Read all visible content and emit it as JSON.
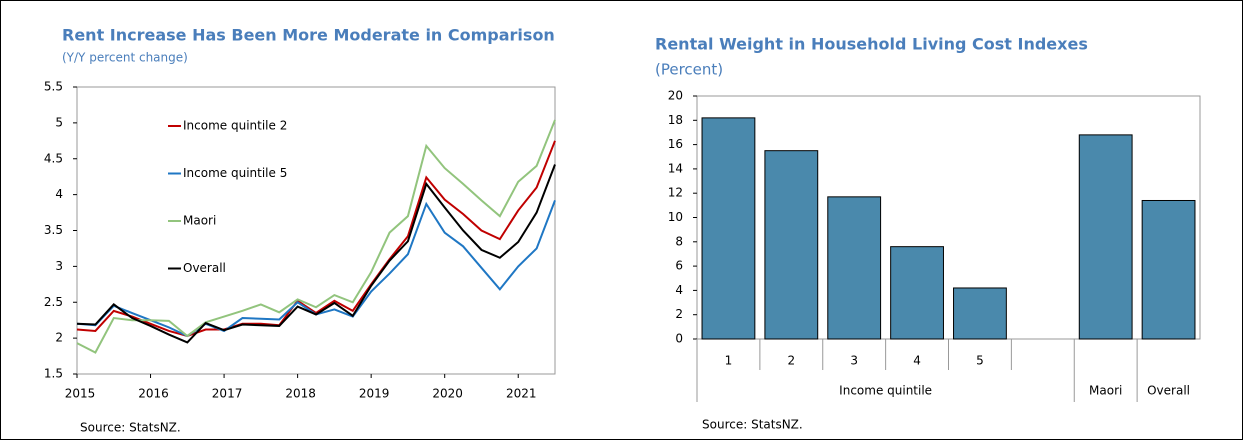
{
  "chart_data": [
    {
      "type": "line",
      "title": "Rent Increase Has Been More Moderate in Comparison",
      "subtitle": "(Y/Y percent change)",
      "source": "Source: StatsNZ.",
      "x": [
        2015,
        2015.25,
        2015.5,
        2015.75,
        2016,
        2016.25,
        2016.5,
        2016.75,
        2017,
        2017.25,
        2017.5,
        2017.75,
        2018,
        2018.25,
        2018.5,
        2018.75,
        2019,
        2019.25,
        2019.5,
        2019.75,
        2020,
        2020.25,
        2020.5,
        2020.75,
        2021,
        2021.25,
        2021.5
      ],
      "xlim": [
        2015,
        2021.5
      ],
      "xticks": [
        2015,
        2016,
        2017,
        2018,
        2019,
        2020,
        2021
      ],
      "ylim": [
        1.5,
        5.5
      ],
      "yticks": [
        1.5,
        2,
        2.5,
        3,
        3.5,
        4,
        4.5,
        5,
        5.5
      ],
      "legend": "upper left",
      "grid": false,
      "series": [
        {
          "name": "Income quintile 2",
          "color": "#c00000",
          "values": [
            2.12,
            2.1,
            2.38,
            2.3,
            2.2,
            2.1,
            2.03,
            2.12,
            2.12,
            2.2,
            2.2,
            2.18,
            2.52,
            2.35,
            2.52,
            2.38,
            2.75,
            3.1,
            3.42,
            4.24,
            3.93,
            3.73,
            3.5,
            3.38,
            3.78,
            4.1,
            4.75
          ]
        },
        {
          "name": "Income quintile 5",
          "color": "#1f77c4",
          "values": [
            2.2,
            2.18,
            2.45,
            2.35,
            2.25,
            2.15,
            2.03,
            2.2,
            2.1,
            2.28,
            2.27,
            2.26,
            2.5,
            2.33,
            2.4,
            2.3,
            2.65,
            2.9,
            3.17,
            3.87,
            3.47,
            3.28,
            2.98,
            2.68,
            3.0,
            3.25,
            3.92
          ]
        },
        {
          "name": "Maori",
          "color": "#92c47d",
          "values": [
            1.93,
            1.8,
            2.28,
            2.25,
            2.25,
            2.24,
            2.03,
            2.22,
            2.3,
            2.38,
            2.47,
            2.36,
            2.54,
            2.43,
            2.6,
            2.5,
            2.92,
            3.47,
            3.7,
            4.68,
            4.37,
            4.15,
            3.92,
            3.7,
            4.18,
            4.4,
            5.04
          ]
        },
        {
          "name": "Overall",
          "color": "#000000",
          "values": [
            2.2,
            2.19,
            2.47,
            2.28,
            2.17,
            2.05,
            1.94,
            2.21,
            2.11,
            2.19,
            2.18,
            2.17,
            2.44,
            2.33,
            2.49,
            2.31,
            2.73,
            3.08,
            3.35,
            4.15,
            3.82,
            3.5,
            3.23,
            3.12,
            3.34,
            3.75,
            4.42
          ]
        }
      ]
    },
    {
      "type": "bar",
      "title": "Rental Weight in Household Living Cost Indexes",
      "subtitle": "(Percent)",
      "source": "Source: StatsNZ.",
      "categories": [
        "1",
        "2",
        "3",
        "4",
        "5",
        null,
        null,
        null
      ],
      "groups": [
        "Income quintile",
        "Income quintile",
        "Income quintile",
        "Income quintile",
        "Income quintile",
        "Income quintile",
        "Maori",
        "Overall"
      ],
      "values": [
        18.2,
        15.5,
        11.7,
        7.6,
        4.2,
        null,
        16.8,
        11.4
      ],
      "color": "#4a89ac",
      "ylim": [
        0,
        20
      ],
      "yticks": [
        0,
        2,
        4,
        6,
        8,
        10,
        12,
        14,
        16,
        18,
        20
      ],
      "grid": false
    }
  ]
}
